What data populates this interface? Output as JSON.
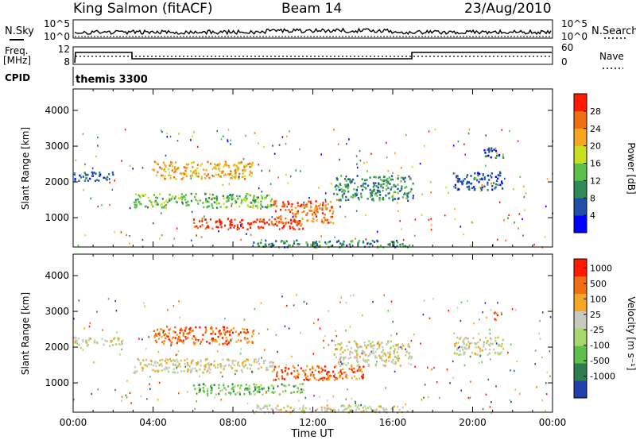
{
  "header": {
    "station": "King Salmon (fitACF)",
    "beam": "Beam 14",
    "date": "23/Aug/2010"
  },
  "side_labels": {
    "nsky": "N.Sky",
    "nsearch": "N.Search",
    "freq_line1": "Freq.",
    "freq_line2": "[MHz]",
    "nave": "Nave",
    "cpid": "CPID"
  },
  "nsky_ticks": [
    "10^5",
    "10^0"
  ],
  "nsearch_ticks": [
    "10^5",
    "10^0"
  ],
  "freq_ticks": [
    "12",
    "8"
  ],
  "nave_ticks": [
    "60",
    "0"
  ],
  "cpid_value": "themis 3300",
  "x_axis": {
    "label": "Time UT",
    "ticks": [
      "00:00",
      "04:00",
      "08:00",
      "12:00",
      "16:00",
      "20:00",
      "00:00"
    ]
  },
  "chart_data": [
    {
      "type": "heatmap",
      "name": "power",
      "ylabel": "Slant Range [km]",
      "ylim": [
        180,
        4600
      ],
      "yticks": [
        "4000",
        "3000",
        "2000",
        "1000"
      ],
      "colorbar_label": "Power [dB]",
      "colorbar_ticks": [
        "28",
        "24",
        "20",
        "16",
        "12",
        "8",
        "4"
      ],
      "colors": [
        "#0000ff",
        "#1f4fa8",
        "#2e8b57",
        "#5cc04b",
        "#c7e01f",
        "#f6a623",
        "#f06f12",
        "#ff1a00"
      ],
      "echo_bands": [
        {
          "t": [
            6.0,
            11.5
          ],
          "r": [
            700,
            1000
          ],
          "level": 7
        },
        {
          "t": [
            10.0,
            13.0
          ],
          "r": [
            850,
            1500
          ],
          "level": 6
        },
        {
          "t": [
            3.0,
            10.0
          ],
          "r": [
            1300,
            1700
          ],
          "level": 3
        },
        {
          "t": [
            4.0,
            9.0
          ],
          "r": [
            2100,
            2600
          ],
          "level": 5
        },
        {
          "t": [
            13.0,
            17.0
          ],
          "r": [
            1500,
            2200
          ],
          "level": 2
        },
        {
          "t": [
            19.0,
            21.5
          ],
          "r": [
            1800,
            2300
          ],
          "level": 1
        },
        {
          "t": [
            20.5,
            21.5
          ],
          "r": [
            2700,
            3000
          ],
          "level": 1
        },
        {
          "t": [
            0.0,
            2.0
          ],
          "r": [
            2050,
            2300
          ],
          "level": 1
        },
        {
          "t": [
            9.0,
            17.0
          ],
          "r": [
            200,
            400
          ],
          "level": 2
        }
      ]
    },
    {
      "type": "heatmap",
      "name": "velocity",
      "ylabel": "Slant Range [km]",
      "ylim": [
        180,
        4600
      ],
      "yticks": [
        "4000",
        "3000",
        "2000",
        "1000"
      ],
      "colorbar_label": "Velocity [m s⁻¹]",
      "colorbar_ticks": [
        "1000",
        "500",
        "100",
        "25",
        "-25",
        "-100",
        "-500",
        "-1000"
      ],
      "colors": [
        "#1f3fae",
        "#2e7d4f",
        "#5cc04b",
        "#a6d96a",
        "#c9c9c2",
        "#f6a623",
        "#f06f12",
        "#ff1a00"
      ],
      "echo_bands": [
        {
          "t": [
            6.0,
            11.5
          ],
          "r": [
            700,
            1000
          ],
          "level": 2
        },
        {
          "t": [
            10.0,
            14.5
          ],
          "r": [
            1100,
            1500
          ],
          "level": 6
        },
        {
          "t": [
            3.0,
            10.0
          ],
          "r": [
            1300,
            1700
          ],
          "level": 4
        },
        {
          "t": [
            4.0,
            9.0
          ],
          "r": [
            2100,
            2600
          ],
          "level": 6
        },
        {
          "t": [
            13.0,
            17.0
          ],
          "r": [
            1500,
            2200
          ],
          "level": 4
        },
        {
          "t": [
            19.0,
            21.5
          ],
          "r": [
            1800,
            2300
          ],
          "level": 4
        },
        {
          "t": [
            21.0,
            21.4
          ],
          "r": [
            2750,
            3000
          ],
          "level": 6
        },
        {
          "t": [
            0.0,
            2.5
          ],
          "r": [
            2050,
            2300
          ],
          "level": 4
        },
        {
          "t": [
            9.0,
            17.0
          ],
          "r": [
            200,
            400
          ],
          "level": 4
        }
      ]
    }
  ]
}
